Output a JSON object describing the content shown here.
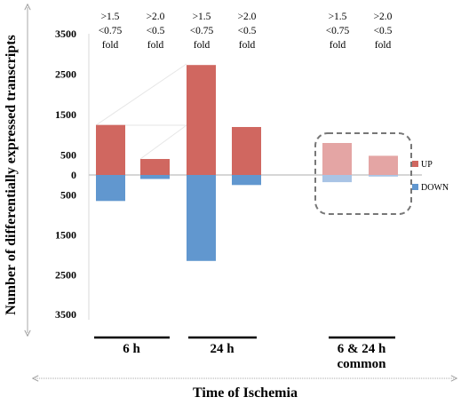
{
  "chart_data": {
    "type": "bar",
    "ylabel": "Number of differentially expressed transcripts",
    "xlabel": "Time of Ischemia",
    "y_tick_labels": [
      {
        "label": "3500",
        "value": 3500
      },
      {
        "label": "2500",
        "value": 2500
      },
      {
        "label": "1500",
        "value": 1500
      },
      {
        "label": "500",
        "value": 500
      },
      {
        "label": "0",
        "value": 0
      },
      {
        "label": "500",
        "value": -500
      },
      {
        "label": "1500",
        "value": -1500
      },
      {
        "label": "2500",
        "value": -2500
      },
      {
        "label": "3500",
        "value": -3500
      }
    ],
    "ylim": [
      -3500,
      3500
    ],
    "legend": {
      "placement": "right",
      "entries": [
        "UP",
        "DOWN"
      ]
    },
    "colors": {
      "up": "#d06760",
      "down": "#6197cf",
      "up_light": "#e4a5a4",
      "down_light": "#a9c4e5"
    },
    "thresholds": [
      {
        "l1": ">1.5",
        "l2": "<0.75",
        "l3": "fold"
      },
      {
        "l1": ">2.0",
        "l2": "<0.5",
        "l3": "fold"
      },
      {
        "l1": ">1.5",
        "l2": "<0.75",
        "l3": "fold"
      },
      {
        "l1": ">2.0",
        "l2": "<0.5",
        "l3": "fold"
      },
      {
        "l1": ">1.5",
        "l2": "<0.75",
        "l3": "fold"
      },
      {
        "l1": ">2.0",
        "l2": "<0.5",
        "l3": "fold"
      }
    ],
    "groups": [
      {
        "label": "6 h",
        "label2": ""
      },
      {
        "label": "24 h",
        "label2": ""
      },
      {
        "label": "6 & 24 h",
        "label2": "common"
      }
    ],
    "series": [
      {
        "name": "UP",
        "values": [
          1250,
          400,
          2750,
          1200,
          800,
          480
        ]
      },
      {
        "name": "DOWN",
        "values": [
          -650,
          -100,
          -2150,
          -250,
          -180,
          -40
        ]
      }
    ]
  }
}
